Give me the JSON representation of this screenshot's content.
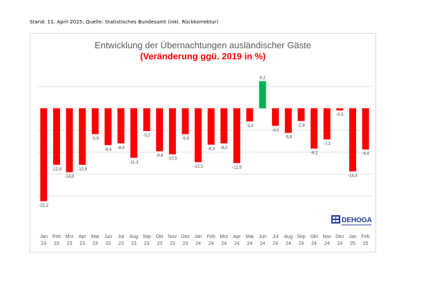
{
  "header": {
    "stand": "Stand: 11. April 2025; Quelle: Statistisches Bundesamt (inkl. Rückkorrektur)"
  },
  "logo": {
    "text": "DEHOGA"
  },
  "colors": {
    "negative": "#ff0000",
    "positive": "#00b050",
    "grid": "#d9d9d9"
  },
  "chart_data": {
    "type": "bar",
    "title": "Entwicklung der Übernachtungen ausländischer Gäste",
    "subtitle": "(Veränderung ggü. 2019 in %)",
    "ylim": [
      -25,
      10
    ],
    "grid": true,
    "categories": [
      [
        "Jan",
        "23"
      ],
      [
        "Feb",
        "23"
      ],
      [
        "Mrz",
        "23"
      ],
      [
        "Apr",
        "23"
      ],
      [
        "Mai",
        "23"
      ],
      [
        "Jun",
        "23"
      ],
      [
        "Jul",
        "23"
      ],
      [
        "Aug",
        "23"
      ],
      [
        "Sep",
        "23"
      ],
      [
        "Okt",
        "23"
      ],
      [
        "Nov",
        "23"
      ],
      [
        "Dez",
        "23"
      ],
      [
        "Jan",
        "24"
      ],
      [
        "Feb",
        "24"
      ],
      [
        "Mrz",
        "24"
      ],
      [
        "Apr",
        "24"
      ],
      [
        "Mai",
        "24"
      ],
      [
        "Jun",
        "24"
      ],
      [
        "Jul",
        "24"
      ],
      [
        "Aug",
        "24"
      ],
      [
        "Sep",
        "24"
      ],
      [
        "Okt",
        "24"
      ],
      [
        "Nov",
        "24"
      ],
      [
        "Dez",
        "24"
      ],
      [
        "Jan",
        "25"
      ],
      [
        "Feb",
        "25"
      ]
    ],
    "values": [
      -21.2,
      -12.9,
      -14.6,
      -12.9,
      -5.9,
      -8.4,
      -8.0,
      -11.3,
      -5.2,
      -9.8,
      -10.5,
      -5.9,
      -12.3,
      -8.3,
      -8.0,
      -12.5,
      -3.0,
      6.2,
      -4.0,
      -5.6,
      -2.9,
      -9.2,
      -7.1,
      -0.5,
      -14.4,
      -9.4
    ],
    "value_labels": [
      "-21,2",
      "-12,9",
      "-14,6",
      "-12,9",
      "-5,9",
      "-8,4",
      "-8,0",
      "-11,3",
      "-5,2",
      "-9,8",
      "-10,5",
      "-5,9",
      "-12,3",
      "-8,3",
      "-8,0",
      "-12,5",
      "-3,0",
      "6,2",
      "-4,0",
      "-5,6",
      "-2,9",
      "-9,2",
      "-7,1",
      "-0,5",
      "-14,4",
      "-9,4"
    ]
  }
}
